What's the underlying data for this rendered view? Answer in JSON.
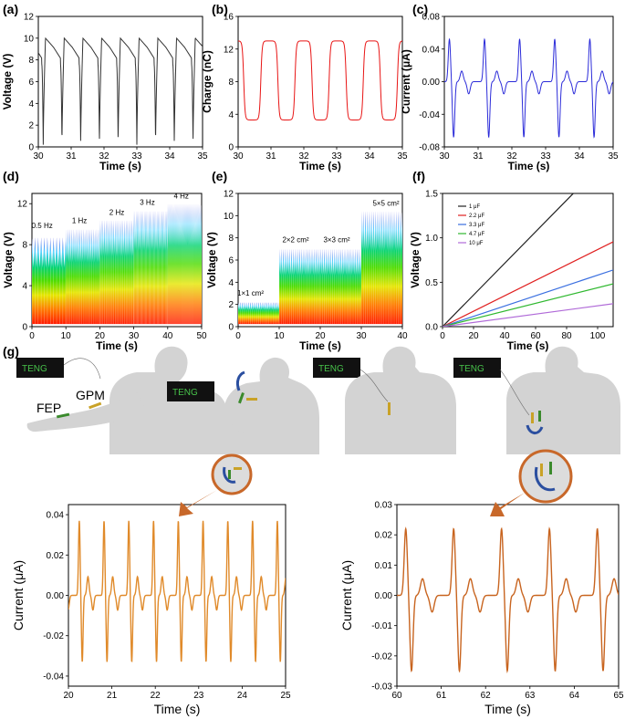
{
  "colors": {
    "a": "#333333",
    "b": "#e81414",
    "c": "#2b2bd9",
    "g": "#e08a2a",
    "g_right": "#c8641f",
    "arm_callout": "#c8682a",
    "fep": "#3a8a2c",
    "gpm": "#c9a227",
    "hand": "#2b4fa0",
    "teng_text": "#47c24a",
    "rainbow": [
      "#ff1a00",
      "#ff7a00",
      "#e6e600",
      "#4ddc00",
      "#00d27a",
      "#33c9ff",
      "#2020e0"
    ]
  },
  "illustration": {
    "teng_label": "TENG",
    "fep_label": "FEP",
    "gpm_label": "GPM"
  },
  "chart_data": [
    {
      "id": "a",
      "label": "(a)",
      "type": "line",
      "xlabel": "Time (s)",
      "ylabel": "Voltage (V)",
      "xlim": [
        30,
        35
      ],
      "ylim": [
        0,
        12
      ],
      "xticks": [
        "30",
        "31",
        "32",
        "33",
        "34",
        "35"
      ],
      "yticks": [
        "0",
        "2",
        "4",
        "6",
        "8",
        "10",
        "12"
      ],
      "series": [
        {
          "name": "voltage",
          "kind": "voltage",
          "period": 0.57,
          "phase": 30.15,
          "min": 0.2,
          "peak": 10.0,
          "shoulder": 8.6,
          "start": 30.0,
          "end": 35.0
        }
      ]
    },
    {
      "id": "b",
      "label": "(b)",
      "type": "line",
      "xlabel": "Time (s)",
      "ylabel": "Charge (nC)",
      "xlim": [
        30,
        35
      ],
      "ylim": [
        0,
        16
      ],
      "xticks": [
        "30",
        "31",
        "32",
        "33",
        "34",
        "35"
      ],
      "yticks": [
        "0",
        "4",
        "8",
        "12",
        "16"
      ],
      "series": [
        {
          "name": "charge",
          "kind": "charge",
          "period": 1.04,
          "phase": 30.95,
          "low": 3.3,
          "high": 13.0,
          "start": 30.0,
          "end": 35.0
        }
      ]
    },
    {
      "id": "c",
      "label": "(c)",
      "type": "line",
      "xlabel": "Time (s)",
      "ylabel": "Current (μA)",
      "xlim": [
        30,
        35
      ],
      "ylim": [
        -0.08,
        0.08
      ],
      "xticks": [
        "30",
        "31",
        "32",
        "33",
        "34",
        "35"
      ],
      "yticks": [
        "-0.08",
        "-0.04",
        "0.00",
        "0.04",
        "0.08"
      ],
      "series": [
        {
          "name": "current",
          "kind": "current",
          "period": 1.04,
          "phase": 30.15,
          "pos": 0.052,
          "neg": -0.068,
          "start": 30.0,
          "end": 35.0
        }
      ]
    },
    {
      "id": "d",
      "label": "(d)",
      "type": "line",
      "xlabel": "Time (s)",
      "ylabel": "Voltage (V)",
      "xlim": [
        0,
        50
      ],
      "ylim": [
        0,
        13
      ],
      "xticks": [
        "0",
        "10",
        "20",
        "30",
        "40",
        "50"
      ],
      "yticks": [
        "0",
        "4",
        "8",
        "12"
      ],
      "segments": [
        {
          "label": "0.5 Hz",
          "from": 0,
          "to": 10,
          "top": 8.7,
          "period": 0.9,
          "labelAt": 3,
          "labelY": 9.6
        },
        {
          "label": "1 Hz",
          "from": 10,
          "to": 20,
          "top": 9.5,
          "period": 0.6,
          "labelAt": 14,
          "labelY": 10.1
        },
        {
          "label": "2 Hz",
          "from": 20,
          "to": 30,
          "top": 10.4,
          "period": 0.45,
          "labelAt": 25,
          "labelY": 10.9
        },
        {
          "label": "3 Hz",
          "from": 30,
          "to": 40,
          "top": 11.3,
          "period": 0.35,
          "labelAt": 34,
          "labelY": 11.9
        },
        {
          "label": "4 Hz",
          "from": 40,
          "to": 50,
          "top": 12.0,
          "period": 0.28,
          "labelAt": 44,
          "labelY": 12.5
        }
      ]
    },
    {
      "id": "e",
      "label": "(e)",
      "type": "line",
      "xlabel": "Time (s)",
      "ylabel": "Voltage (V)",
      "xlim": [
        0,
        40
      ],
      "ylim": [
        0,
        12
      ],
      "xticks": [
        "0",
        "10",
        "20",
        "30",
        "40"
      ],
      "yticks": [
        "0",
        "2",
        "4",
        "6",
        "8",
        "10",
        "12"
      ],
      "segments": [
        {
          "label": "1×1 cm²",
          "from": 0,
          "to": 10,
          "top": 2.2,
          "period": 0.5,
          "labelAt": 3,
          "labelY": 2.8
        },
        {
          "label": "2×2 cm²",
          "from": 10,
          "to": 20,
          "top": 7.0,
          "period": 0.5,
          "labelAt": 14,
          "labelY": 7.6
        },
        {
          "label": "3×3 cm²",
          "from": 20,
          "to": 30,
          "top": 7.0,
          "period": 0.5,
          "labelAt": 24,
          "labelY": 7.6
        },
        {
          "label": "5×5 cm²",
          "from": 30,
          "to": 40,
          "top": 10.4,
          "period": 0.5,
          "labelAt": 36,
          "labelY": 10.9
        }
      ]
    },
    {
      "id": "f",
      "label": "(f)",
      "type": "line",
      "xlabel": "Time (s)",
      "ylabel": "Voltage (V)",
      "xlim": [
        0,
        110
      ],
      "ylim": [
        0,
        1.5
      ],
      "xticks": [
        "0",
        "20",
        "40",
        "60",
        "80",
        "100"
      ],
      "yticks": [
        "0.0",
        "0.5",
        "1.0",
        "1.5"
      ],
      "series": [
        {
          "name": "1 μF",
          "color": "#222222",
          "slope": 0.0178
        },
        {
          "name": "2.2 μF",
          "color": "#e02020",
          "slope": 0.00868
        },
        {
          "name": "3.3 μF",
          "color": "#3a6fe0",
          "slope": 0.0058
        },
        {
          "name": "4.7 μF",
          "color": "#2fb82f",
          "slope": 0.00438
        },
        {
          "name": "10 μF",
          "color": "#b06ad8",
          "slope": 0.00235
        }
      ]
    },
    {
      "id": "g1",
      "label": "(g)",
      "type": "line",
      "xlabel": "Time (s)",
      "ylabel": "Current (μA)",
      "xlim": [
        20,
        25
      ],
      "ylim": [
        -0.045,
        0.045
      ],
      "xticks": [
        "20",
        "21",
        "22",
        "23",
        "24",
        "25"
      ],
      "yticks": [
        "-0.04",
        "-0.02",
        "0.00",
        "0.02",
        "0.04"
      ],
      "series": [
        {
          "name": "current",
          "kind": "current",
          "period": 0.57,
          "phase": 20.25,
          "pos": 0.037,
          "neg": -0.033,
          "start": 20.0,
          "end": 25.0
        }
      ]
    },
    {
      "id": "g2",
      "label": "",
      "type": "line",
      "xlabel": "Time (s)",
      "ylabel": "Current (μA)",
      "xlim": [
        60,
        65
      ],
      "ylim": [
        -0.03,
        0.03
      ],
      "xticks": [
        "60",
        "61",
        "62",
        "63",
        "64",
        "65"
      ],
      "yticks": [
        "-0.03",
        "-0.02",
        "-0.01",
        "0.00",
        "0.01",
        "0.02",
        "0.03"
      ],
      "series": [
        {
          "name": "current",
          "kind": "current",
          "period": 1.08,
          "phase": 60.2,
          "pos": 0.022,
          "neg": -0.025,
          "start": 60.0,
          "end": 65.0
        }
      ]
    }
  ]
}
